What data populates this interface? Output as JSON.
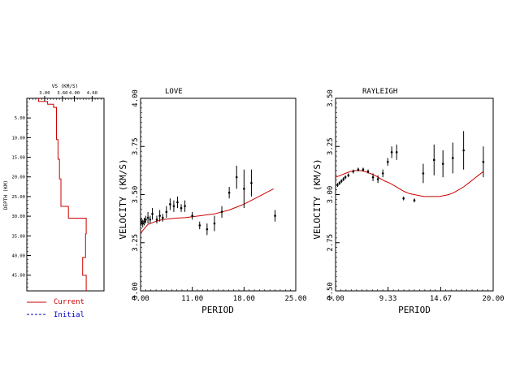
{
  "colors": {
    "model": "#cc0000",
    "initial": "#0000cc",
    "ink": "#000000"
  },
  "legend": {
    "current": "Current",
    "initial": "Initial"
  },
  "chart_data": [
    {
      "type": "line",
      "id": "depth",
      "xlabel": "VS (KM/S)",
      "ylabel": "DEPTH (KM)",
      "xlim": [
        2.4,
        5.0
      ],
      "ylim": [
        0,
        49
      ],
      "xticks": [
        3.0,
        3.6,
        4.0,
        4.6
      ],
      "xtick_labels": [
        "3.00",
        "3.60",
        "4.00",
        "4.60"
      ],
      "yticks": [
        5,
        10,
        15,
        20,
        25,
        30,
        35,
        40,
        45
      ],
      "ytick_labels": [
        "5.00",
        "10.00",
        "15.00",
        "20.00",
        "25.00",
        "30.00",
        "35.00",
        "40.00",
        "45.00"
      ],
      "series": [
        {
          "role": "current",
          "x": [
            2.8,
            2.8,
            3.1,
            3.1,
            3.3,
            3.3,
            3.4,
            3.4,
            3.45,
            3.45,
            3.5,
            3.5,
            3.55,
            3.55,
            3.8,
            3.8,
            4.4,
            4.4,
            4.38,
            4.38,
            4.28,
            4.28,
            4.4,
            4.4
          ],
          "y": [
            0,
            0.8,
            0.8,
            1.5,
            1.5,
            2.3,
            2.3,
            10.5,
            10.5,
            15.5,
            15.5,
            20.5,
            20.5,
            27.5,
            27.5,
            30.5,
            30.5,
            34.5,
            34.5,
            40.5,
            40.5,
            45,
            45,
            49
          ]
        }
      ]
    },
    {
      "type": "scatter",
      "id": "love",
      "title": "LOVE",
      "xlabel": "PERIOD",
      "ylabel": "VELOCITY (KM/S)",
      "xlim": [
        4,
        25
      ],
      "ylim": [
        3.0,
        4.0
      ],
      "xticks": [
        4,
        11,
        18,
        25
      ],
      "xtick_labels": [
        "4.00",
        "11.00",
        "18.00",
        "25.00"
      ],
      "yticks": [
        3.0,
        3.25,
        3.5,
        3.75,
        4.0
      ],
      "ytick_labels": [
        "3.00",
        "3.25",
        "3.50",
        "3.75",
        "4.00"
      ],
      "observed": [
        {
          "x": 4.1,
          "y": 3.36,
          "err": 0.02
        },
        {
          "x": 4.3,
          "y": 3.35,
          "err": 0.02
        },
        {
          "x": 4.5,
          "y": 3.36,
          "err": 0.02
        },
        {
          "x": 4.7,
          "y": 3.37,
          "err": 0.02
        },
        {
          "x": 5.0,
          "y": 3.38,
          "err": 0.03
        },
        {
          "x": 5.3,
          "y": 3.37,
          "err": 0.02
        },
        {
          "x": 5.6,
          "y": 3.4,
          "err": 0.03
        },
        {
          "x": 6.2,
          "y": 3.37,
          "err": 0.02
        },
        {
          "x": 6.6,
          "y": 3.39,
          "err": 0.03
        },
        {
          "x": 7.0,
          "y": 3.38,
          "err": 0.02
        },
        {
          "x": 7.5,
          "y": 3.41,
          "err": 0.03
        },
        {
          "x": 8.0,
          "y": 3.45,
          "err": 0.03
        },
        {
          "x": 8.5,
          "y": 3.44,
          "err": 0.03
        },
        {
          "x": 9.0,
          "y": 3.46,
          "err": 0.03
        },
        {
          "x": 9.5,
          "y": 3.43,
          "err": 0.02
        },
        {
          "x": 10.0,
          "y": 3.44,
          "err": 0.03
        },
        {
          "x": 11.0,
          "y": 3.39,
          "err": 0.02
        },
        {
          "x": 12.0,
          "y": 3.34,
          "err": 0.02
        },
        {
          "x": 13.0,
          "y": 3.32,
          "err": 0.03
        },
        {
          "x": 14.0,
          "y": 3.35,
          "err": 0.04
        },
        {
          "x": 15.0,
          "y": 3.41,
          "err": 0.03
        },
        {
          "x": 16.0,
          "y": 3.51,
          "err": 0.03
        },
        {
          "x": 17.0,
          "y": 3.59,
          "err": 0.06
        },
        {
          "x": 18.0,
          "y": 3.53,
          "err": 0.1
        },
        {
          "x": 19.0,
          "y": 3.56,
          "err": 0.07
        },
        {
          "x": 22.2,
          "y": 3.39,
          "err": 0.03
        }
      ],
      "predicted": {
        "x": [
          4.0,
          5,
          6,
          7,
          8,
          9,
          10,
          11,
          12,
          13,
          14,
          15,
          16,
          17,
          18,
          19,
          20,
          21,
          22
        ],
        "y": [
          3.3,
          3.345,
          3.36,
          3.37,
          3.375,
          3.378,
          3.38,
          3.385,
          3.39,
          3.395,
          3.4,
          3.41,
          3.42,
          3.435,
          3.45,
          3.47,
          3.49,
          3.51,
          3.53
        ]
      }
    },
    {
      "type": "scatter",
      "id": "rayleigh",
      "title": "RAYLEIGH",
      "xlabel": "PERIOD",
      "ylabel": "VELOCITY (KM/S)",
      "xlim": [
        4,
        20
      ],
      "ylim": [
        2.5,
        3.5
      ],
      "xticks": [
        4,
        9.33,
        14.67,
        20
      ],
      "xtick_labels": [
        "4.00",
        "9.33",
        "14.67",
        "20.00"
      ],
      "yticks": [
        2.5,
        2.75,
        3.0,
        3.25,
        3.5
      ],
      "ytick_labels": [
        "2.50",
        "2.75",
        "3.00",
        "3.25",
        "3.50"
      ],
      "observed": [
        {
          "x": 4.2,
          "y": 3.05,
          "err": 0.01
        },
        {
          "x": 4.4,
          "y": 3.06,
          "err": 0.01
        },
        {
          "x": 4.6,
          "y": 3.07,
          "err": 0.01
        },
        {
          "x": 4.8,
          "y": 3.08,
          "err": 0.01
        },
        {
          "x": 5.0,
          "y": 3.09,
          "err": 0.01
        },
        {
          "x": 5.3,
          "y": 3.1,
          "err": 0.01
        },
        {
          "x": 5.8,
          "y": 3.12,
          "err": 0.01
        },
        {
          "x": 6.3,
          "y": 3.13,
          "err": 0.01
        },
        {
          "x": 6.8,
          "y": 3.13,
          "err": 0.01
        },
        {
          "x": 7.3,
          "y": 3.12,
          "err": 0.01
        },
        {
          "x": 7.8,
          "y": 3.09,
          "err": 0.02
        },
        {
          "x": 8.3,
          "y": 3.08,
          "err": 0.02
        },
        {
          "x": 8.8,
          "y": 3.11,
          "err": 0.02
        },
        {
          "x": 9.3,
          "y": 3.17,
          "err": 0.02
        },
        {
          "x": 9.7,
          "y": 3.22,
          "err": 0.03
        },
        {
          "x": 10.2,
          "y": 3.22,
          "err": 0.04
        },
        {
          "x": 10.9,
          "y": 2.98,
          "err": 0.01
        },
        {
          "x": 12.0,
          "y": 2.97,
          "err": 0.01
        },
        {
          "x": 12.9,
          "y": 3.11,
          "err": 0.05
        },
        {
          "x": 14.0,
          "y": 3.18,
          "err": 0.08
        },
        {
          "x": 14.9,
          "y": 3.16,
          "err": 0.07
        },
        {
          "x": 15.9,
          "y": 3.19,
          "err": 0.08
        },
        {
          "x": 17.0,
          "y": 3.23,
          "err": 0.1
        },
        {
          "x": 19.0,
          "y": 3.17,
          "err": 0.08
        }
      ],
      "predicted": {
        "x": [
          4.0,
          4.5,
          5,
          5.5,
          6,
          6.5,
          7,
          7.5,
          8,
          8.5,
          9,
          9.5,
          10,
          10.5,
          11,
          11.5,
          12,
          12.5,
          13,
          13.5,
          14,
          14.5,
          15,
          15.5,
          16,
          16.5,
          17,
          17.5,
          18,
          18.5,
          19
        ],
        "y": [
          3.09,
          3.1,
          3.11,
          3.12,
          3.125,
          3.125,
          3.12,
          3.11,
          3.1,
          3.085,
          3.07,
          3.06,
          3.045,
          3.03,
          3.015,
          3.005,
          3.0,
          2.995,
          2.99,
          2.99,
          2.99,
          2.99,
          2.995,
          3.0,
          3.01,
          3.025,
          3.04,
          3.06,
          3.08,
          3.1,
          3.12
        ]
      }
    }
  ]
}
